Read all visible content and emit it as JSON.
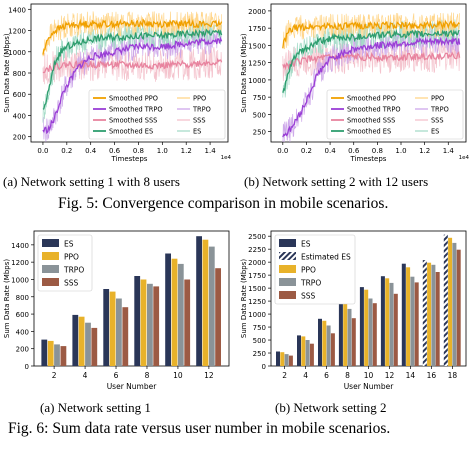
{
  "colors": {
    "ppo": "#f0a000",
    "trpo": "#9a3fd6",
    "sss": "#e8849f",
    "es": "#2f9e6f",
    "trpo_raw": "#c9a0e8",
    "es_raw": "#9fd9c4",
    "ppo_raw": "#ffd280",
    "sss_raw": "#f3bcc8",
    "bar_es": "#2a3658",
    "bar_ppo": "#e8b22a",
    "bar_trpo": "#8a9398",
    "bar_sss": "#9c5a44"
  },
  "captions": {
    "a_top": "(a) Network setting 1 with 8 users",
    "b_top": "(b) Network setting 2 with 12 users",
    "fig5": "Fig. 5: Convergence comparison in mobile scenarios.",
    "a_bottom": "(a) Network setting 1",
    "b_bottom": "(b) Network setting 2",
    "fig6": "Fig. 6: Sum data rate versus user number in mobile scenarios."
  },
  "chart_data": [
    {
      "type": "line",
      "ylabel": "Sum Data Rate (Mbps)",
      "xlabel": "Timesteps",
      "x_exponent": "1e4",
      "xlim": [
        -0.1,
        1.55
      ],
      "ylim": [
        150,
        1450
      ],
      "xticks": [
        "0.0",
        "0.2",
        "0.4",
        "0.6",
        "0.8",
        "1.0",
        "1.2",
        "1.4"
      ],
      "xtick_values": [
        0,
        0.2,
        0.4,
        0.6,
        0.8,
        1.0,
        1.2,
        1.4
      ],
      "yticks": [
        "200",
        "400",
        "600",
        "800",
        "1000",
        "1200",
        "1400"
      ],
      "ytick_values": [
        200,
        400,
        600,
        800,
        1000,
        1200,
        1400
      ],
      "legend": [
        "Smoothed PPO",
        "Smoothed TRPO",
        "Smoothed SSS",
        "Smoothed ES",
        "PPO",
        "TRPO",
        "SSS",
        "ES"
      ],
      "legend_position": "bottom-right",
      "series": [
        {
          "name": "Smoothed PPO",
          "key": "ppo",
          "points": [
            [
              0.0,
              980
            ],
            [
              0.05,
              1140
            ],
            [
              0.1,
              1200
            ],
            [
              0.2,
              1250
            ],
            [
              0.4,
              1265
            ],
            [
              0.6,
              1260
            ],
            [
              0.8,
              1270
            ],
            [
              1.0,
              1260
            ],
            [
              1.2,
              1265
            ],
            [
              1.4,
              1260
            ],
            [
              1.5,
              1255
            ]
          ]
        },
        {
          "name": "Smoothed TRPO",
          "key": "trpo",
          "points": [
            [
              0.0,
              260
            ],
            [
              0.05,
              270
            ],
            [
              0.1,
              380
            ],
            [
              0.15,
              560
            ],
            [
              0.2,
              680
            ],
            [
              0.3,
              860
            ],
            [
              0.4,
              950
            ],
            [
              0.6,
              1000
            ],
            [
              0.8,
              1050
            ],
            [
              1.0,
              1050
            ],
            [
              1.2,
              1080
            ],
            [
              1.4,
              1100
            ],
            [
              1.5,
              1110
            ]
          ]
        },
        {
          "name": "Smoothed SSS",
          "key": "sss",
          "points": [
            [
              0.0,
              830
            ],
            [
              0.1,
              860
            ],
            [
              0.2,
              880
            ],
            [
              0.4,
              880
            ],
            [
              0.6,
              880
            ],
            [
              0.8,
              870
            ],
            [
              1.0,
              870
            ],
            [
              1.2,
              880
            ],
            [
              1.4,
              900
            ],
            [
              1.5,
              900
            ]
          ]
        },
        {
          "name": "Smoothed ES",
          "key": "es",
          "points": [
            [
              0.0,
              430
            ],
            [
              0.05,
              640
            ],
            [
              0.1,
              900
            ],
            [
              0.15,
              1000
            ],
            [
              0.2,
              1050
            ],
            [
              0.3,
              1080
            ],
            [
              0.4,
              1120
            ],
            [
              0.6,
              1140
            ],
            [
              0.8,
              1150
            ],
            [
              1.0,
              1150
            ],
            [
              1.2,
              1170
            ],
            [
              1.4,
              1180
            ],
            [
              1.5,
              1180
            ]
          ]
        }
      ]
    },
    {
      "type": "line",
      "ylabel": "Sum Data Rate (Mbps)",
      "xlabel": "Timesteps",
      "x_exponent": "1e4",
      "xlim": [
        -0.1,
        1.55
      ],
      "ylim": [
        100,
        2100
      ],
      "xticks": [
        "0.0",
        "0.2",
        "0.4",
        "0.6",
        "0.8",
        "1.0",
        "1.2",
        "1.4"
      ],
      "xtick_values": [
        0,
        0.2,
        0.4,
        0.6,
        0.8,
        1.0,
        1.2,
        1.4
      ],
      "yticks": [
        "250",
        "500",
        "750",
        "1000",
        "1250",
        "1500",
        "1750",
        "2000"
      ],
      "ytick_values": [
        250,
        500,
        750,
        1000,
        1250,
        1500,
        1750,
        2000
      ],
      "legend": [
        "Smoothed PPO",
        "Smoothed TRPO",
        "Smoothed SSS",
        "Smoothed ES",
        "PPO",
        "TRPO",
        "SSS",
        "ES"
      ],
      "legend_position": "bottom-right",
      "series": [
        {
          "name": "Smoothed PPO",
          "key": "ppo",
          "points": [
            [
              0.0,
              1500
            ],
            [
              0.05,
              1700
            ],
            [
              0.1,
              1750
            ],
            [
              0.2,
              1770
            ],
            [
              0.4,
              1780
            ],
            [
              0.6,
              1780
            ],
            [
              0.8,
              1790
            ],
            [
              1.0,
              1790
            ],
            [
              1.2,
              1790
            ],
            [
              1.4,
              1800
            ],
            [
              1.5,
              1800
            ]
          ]
        },
        {
          "name": "Smoothed TRPO",
          "key": "trpo",
          "points": [
            [
              0.0,
              200
            ],
            [
              0.05,
              250
            ],
            [
              0.1,
              380
            ],
            [
              0.15,
              520
            ],
            [
              0.2,
              700
            ],
            [
              0.25,
              900
            ],
            [
              0.3,
              1100
            ],
            [
              0.4,
              1300
            ],
            [
              0.6,
              1450
            ],
            [
              0.8,
              1500
            ],
            [
              1.0,
              1530
            ],
            [
              1.2,
              1550
            ],
            [
              1.4,
              1560
            ],
            [
              1.5,
              1560
            ]
          ]
        },
        {
          "name": "Smoothed SSS",
          "key": "sss",
          "points": [
            [
              0.0,
              1200
            ],
            [
              0.1,
              1250
            ],
            [
              0.2,
              1300
            ],
            [
              0.4,
              1320
            ],
            [
              0.6,
              1330
            ],
            [
              0.8,
              1330
            ],
            [
              1.0,
              1330
            ],
            [
              1.2,
              1340
            ],
            [
              1.4,
              1350
            ],
            [
              1.5,
              1350
            ]
          ]
        },
        {
          "name": "Smoothed ES",
          "key": "es",
          "points": [
            [
              0.0,
              800
            ],
            [
              0.05,
              1100
            ],
            [
              0.1,
              1350
            ],
            [
              0.2,
              1450
            ],
            [
              0.3,
              1550
            ],
            [
              0.4,
              1600
            ],
            [
              0.6,
              1620
            ],
            [
              0.8,
              1650
            ],
            [
              1.0,
              1660
            ],
            [
              1.2,
              1660
            ],
            [
              1.4,
              1680
            ],
            [
              1.5,
              1680
            ]
          ]
        }
      ]
    },
    {
      "type": "bar",
      "ylabel": "Sum Data Rate (Mbps)",
      "xlabel": "User Number",
      "categories": [
        "2",
        "4",
        "6",
        "8",
        "10",
        "12"
      ],
      "ylim": [
        0,
        1560
      ],
      "yticks": [
        "0",
        "200",
        "400",
        "600",
        "800",
        "1000",
        "1200",
        "1400"
      ],
      "ytick_values": [
        0,
        200,
        400,
        600,
        800,
        1000,
        1200,
        1400
      ],
      "legend": [
        "ES",
        "PPO",
        "TRPO",
        "SSS"
      ],
      "legend_position": "top-left",
      "series": [
        {
          "name": "ES",
          "key": "bar_es",
          "values": [
            305,
            590,
            890,
            1040,
            1300,
            1500
          ]
        },
        {
          "name": "PPO",
          "key": "bar_ppo",
          "values": [
            290,
            570,
            860,
            1000,
            1240,
            1460
          ]
        },
        {
          "name": "TRPO",
          "key": "bar_trpo",
          "values": [
            250,
            500,
            780,
            950,
            1180,
            1380
          ]
        },
        {
          "name": "SSS",
          "key": "bar_sss",
          "values": [
            230,
            440,
            680,
            920,
            1000,
            1130
          ]
        }
      ]
    },
    {
      "type": "bar",
      "ylabel": "Sum Data Rate (Mbps)",
      "xlabel": "User Number",
      "categories": [
        "2",
        "4",
        "6",
        "8",
        "10",
        "12",
        "14",
        "16",
        "18"
      ],
      "ylim": [
        0,
        2600
      ],
      "yticks": [
        "0",
        "250",
        "500",
        "750",
        "1000",
        "1250",
        "1500",
        "1750",
        "2000",
        "2250",
        "2500"
      ],
      "ytick_values": [
        0,
        250,
        500,
        750,
        1000,
        1250,
        1500,
        1750,
        2000,
        2250,
        2500
      ],
      "legend": [
        "ES",
        "Estimated ES",
        "PPO",
        "TRPO",
        "SSS"
      ],
      "legend_position": "top-left",
      "series": [
        {
          "name": "ES",
          "key": "bar_es",
          "values": [
            280,
            590,
            910,
            1250,
            1520,
            1730,
            1970,
            null,
            null
          ]
        },
        {
          "name": "Estimated ES",
          "key": "bar_es",
          "hatched": true,
          "values": [
            null,
            null,
            null,
            null,
            null,
            null,
            null,
            2040,
            2530
          ]
        },
        {
          "name": "PPO",
          "key": "bar_ppo",
          "values": [
            265,
            570,
            870,
            1230,
            1470,
            1690,
            1900,
            1990,
            2470
          ]
        },
        {
          "name": "TRPO",
          "key": "bar_trpo",
          "values": [
            230,
            500,
            780,
            1100,
            1300,
            1600,
            1720,
            1950,
            2370
          ]
        },
        {
          "name": "SSS",
          "key": "bar_sss",
          "values": [
            200,
            430,
            630,
            920,
            1210,
            1390,
            1610,
            1810,
            2240
          ]
        }
      ]
    }
  ]
}
